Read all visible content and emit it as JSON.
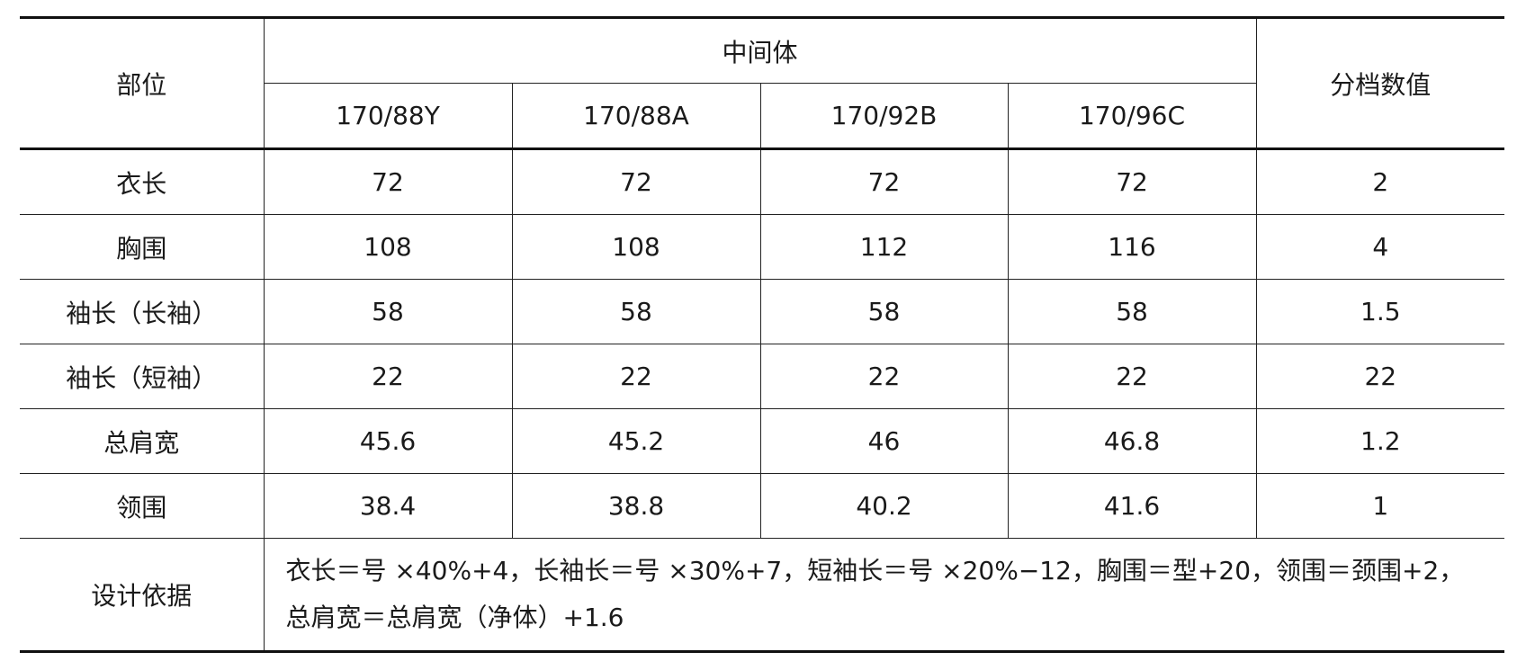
{
  "table": {
    "header": {
      "part": "部位",
      "group": "中间体",
      "sizes": [
        "170/88Y",
        "170/88A",
        "170/92B",
        "170/96C"
      ],
      "grade": "分档数值"
    },
    "rows": [
      [
        "衣长",
        72,
        72,
        72,
        72,
        2
      ],
      [
        "胸围",
        108,
        108,
        112,
        116,
        4
      ],
      [
        "袖长（长袖）",
        58,
        58,
        58,
        58,
        1.5
      ],
      [
        "袖长（短袖）",
        22,
        22,
        22,
        22,
        22
      ],
      [
        "总肩宽",
        45.6,
        45.2,
        46,
        46.8,
        1.2
      ],
      [
        "领围",
        38.4,
        38.8,
        40.2,
        41.6,
        1
      ]
    ],
    "note": {
      "label": "设计依据",
      "text": "衣长＝号 ×40%+4，长袖长＝号 ×30%+7，短袖长＝号 ×20%−12，胸围＝型+20，领围＝颈围+2，总肩宽＝总肩宽（净体）+1.6"
    }
  }
}
